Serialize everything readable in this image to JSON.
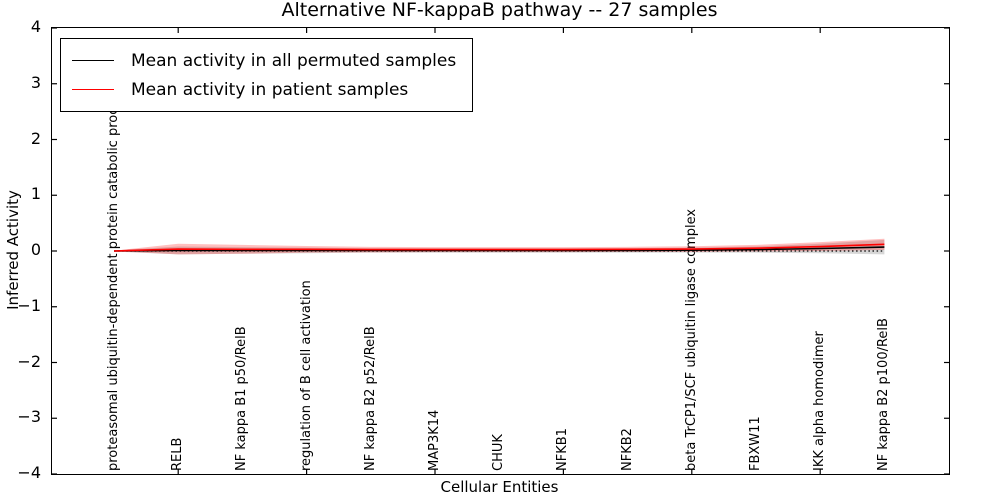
{
  "title": "Alternative NF-kappaB pathway -- 27 samples",
  "axes": {
    "xlabel": "Cellular Entities",
    "ylabel": "Inferred Activity",
    "ytick_labels": [
      "4",
      "3",
      "2",
      "1",
      "0",
      "−1",
      "−2",
      "−3",
      "−4"
    ],
    "ytick_values": [
      4,
      3,
      2,
      1,
      0,
      -1,
      -2,
      -3,
      -4
    ],
    "xtick_indices": [
      1,
      3,
      5,
      7,
      9,
      11
    ]
  },
  "legend": {
    "items": [
      {
        "label": "Mean activity in all permuted samples",
        "color": "#000000"
      },
      {
        "label": "Mean activity in patient samples",
        "color": "#ff0000"
      }
    ]
  },
  "chart_data": {
    "type": "line",
    "title": "Alternative NF-kappaB pathway -- 27 samples",
    "xlabel": "Cellular Entities",
    "ylabel": "Inferred Activity",
    "ylim": [
      -4,
      4
    ],
    "grid": false,
    "legend_position": "upper left",
    "zero_line": {
      "style": "dotted",
      "color": "#000000",
      "y": 0
    },
    "categories": [
      "proteasomal ubiquitin-dependent protein catabolic process",
      "RELB",
      "NF kappa B1 p50/RelB",
      "regulation of B cell activation",
      "NF kappa B2 p52/RelB",
      "MAP3K14",
      "CHUK",
      "NFKB1",
      "NFKB2",
      "beta TrCP1/SCF ubiquitin ligase complex",
      "FBXW11",
      "IKK alpha homodimer",
      "NF kappa B2 p100/RelB"
    ],
    "series": [
      {
        "name": "Mean activity in all permuted samples",
        "color": "#000000",
        "band_color": "rgba(110,110,110,0.28)",
        "values": [
          0.0,
          0.01,
          0.01,
          0.01,
          0.01,
          0.01,
          0.01,
          0.01,
          0.01,
          0.015,
          0.025,
          0.045,
          0.07
        ],
        "std": [
          0.01,
          0.07,
          0.06,
          0.05,
          0.04,
          0.04,
          0.04,
          0.04,
          0.04,
          0.045,
          0.055,
          0.085,
          0.13
        ]
      },
      {
        "name": "Mean activity in patient samples",
        "color": "#ff0000",
        "band_color": "rgba(255,0,0,0.25)",
        "values": [
          0.0,
          0.035,
          0.03,
          0.03,
          0.025,
          0.025,
          0.025,
          0.025,
          0.03,
          0.035,
          0.05,
          0.08,
          0.12
        ],
        "std": [
          0.005,
          0.095,
          0.08,
          0.06,
          0.05,
          0.045,
          0.045,
          0.045,
          0.045,
          0.05,
          0.06,
          0.08,
          0.1
        ]
      }
    ]
  }
}
